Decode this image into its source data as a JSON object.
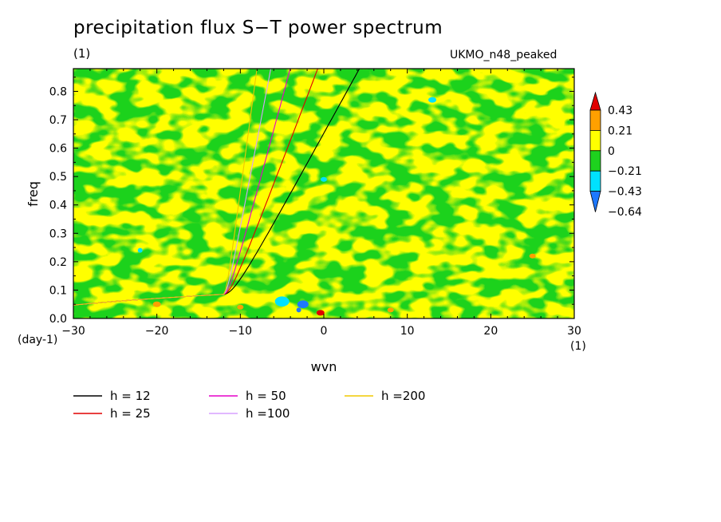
{
  "chart_data": {
    "type": "heatmap",
    "title": "precipitation flux S−T power spectrum",
    "units": "(1)",
    "case_label": "UKMO_n48_peaked",
    "xlabel": "wvn",
    "ylabel": "freq",
    "x_unit": "(1)",
    "y_unit": "(day-1)",
    "xlim": [
      -30,
      30
    ],
    "ylim": [
      0,
      0.88
    ],
    "x_ticks": [
      -30,
      -20,
      -10,
      0,
      10,
      20,
      30
    ],
    "y_ticks": [
      0.0,
      0.1,
      0.2,
      0.3,
      0.4,
      0.5,
      0.6,
      0.7,
      0.8
    ],
    "x_tick_labels": [
      "−30",
      "−20",
      "−10",
      "0",
      "10",
      "20",
      "30"
    ],
    "y_tick_labels": [
      "0.0",
      "0.1",
      "0.2",
      "0.3",
      "0.4",
      "0.5",
      "0.6",
      "0.7",
      "0.8"
    ],
    "colorbar": {
      "levels": [
        -0.64,
        -0.43,
        -0.21,
        0,
        0.21,
        0.43
      ],
      "level_labels": [
        "−0.64",
        "−0.43",
        "−0.21",
        "0",
        "0.21",
        "0.43"
      ],
      "colors": [
        "#1e78ff",
        "#00e1ff",
        "#1ed21e",
        "#ffff00",
        "#ffa000",
        "#e10000"
      ]
    },
    "series": [
      {
        "name": "h = 12",
        "color": "#000000",
        "equivalent_depth": 12
      },
      {
        "name": "h = 25",
        "color": "#e10000",
        "equivalent_depth": 25
      },
      {
        "name": "h = 50",
        "color": "#e600c8",
        "equivalent_depth": 50
      },
      {
        "name": "h =100",
        "color": "#d7a0ff",
        "equivalent_depth": 100
      },
      {
        "name": "h =200",
        "color": "#f0c800",
        "equivalent_depth": 200
      }
    ],
    "legend_position": "bottom"
  }
}
